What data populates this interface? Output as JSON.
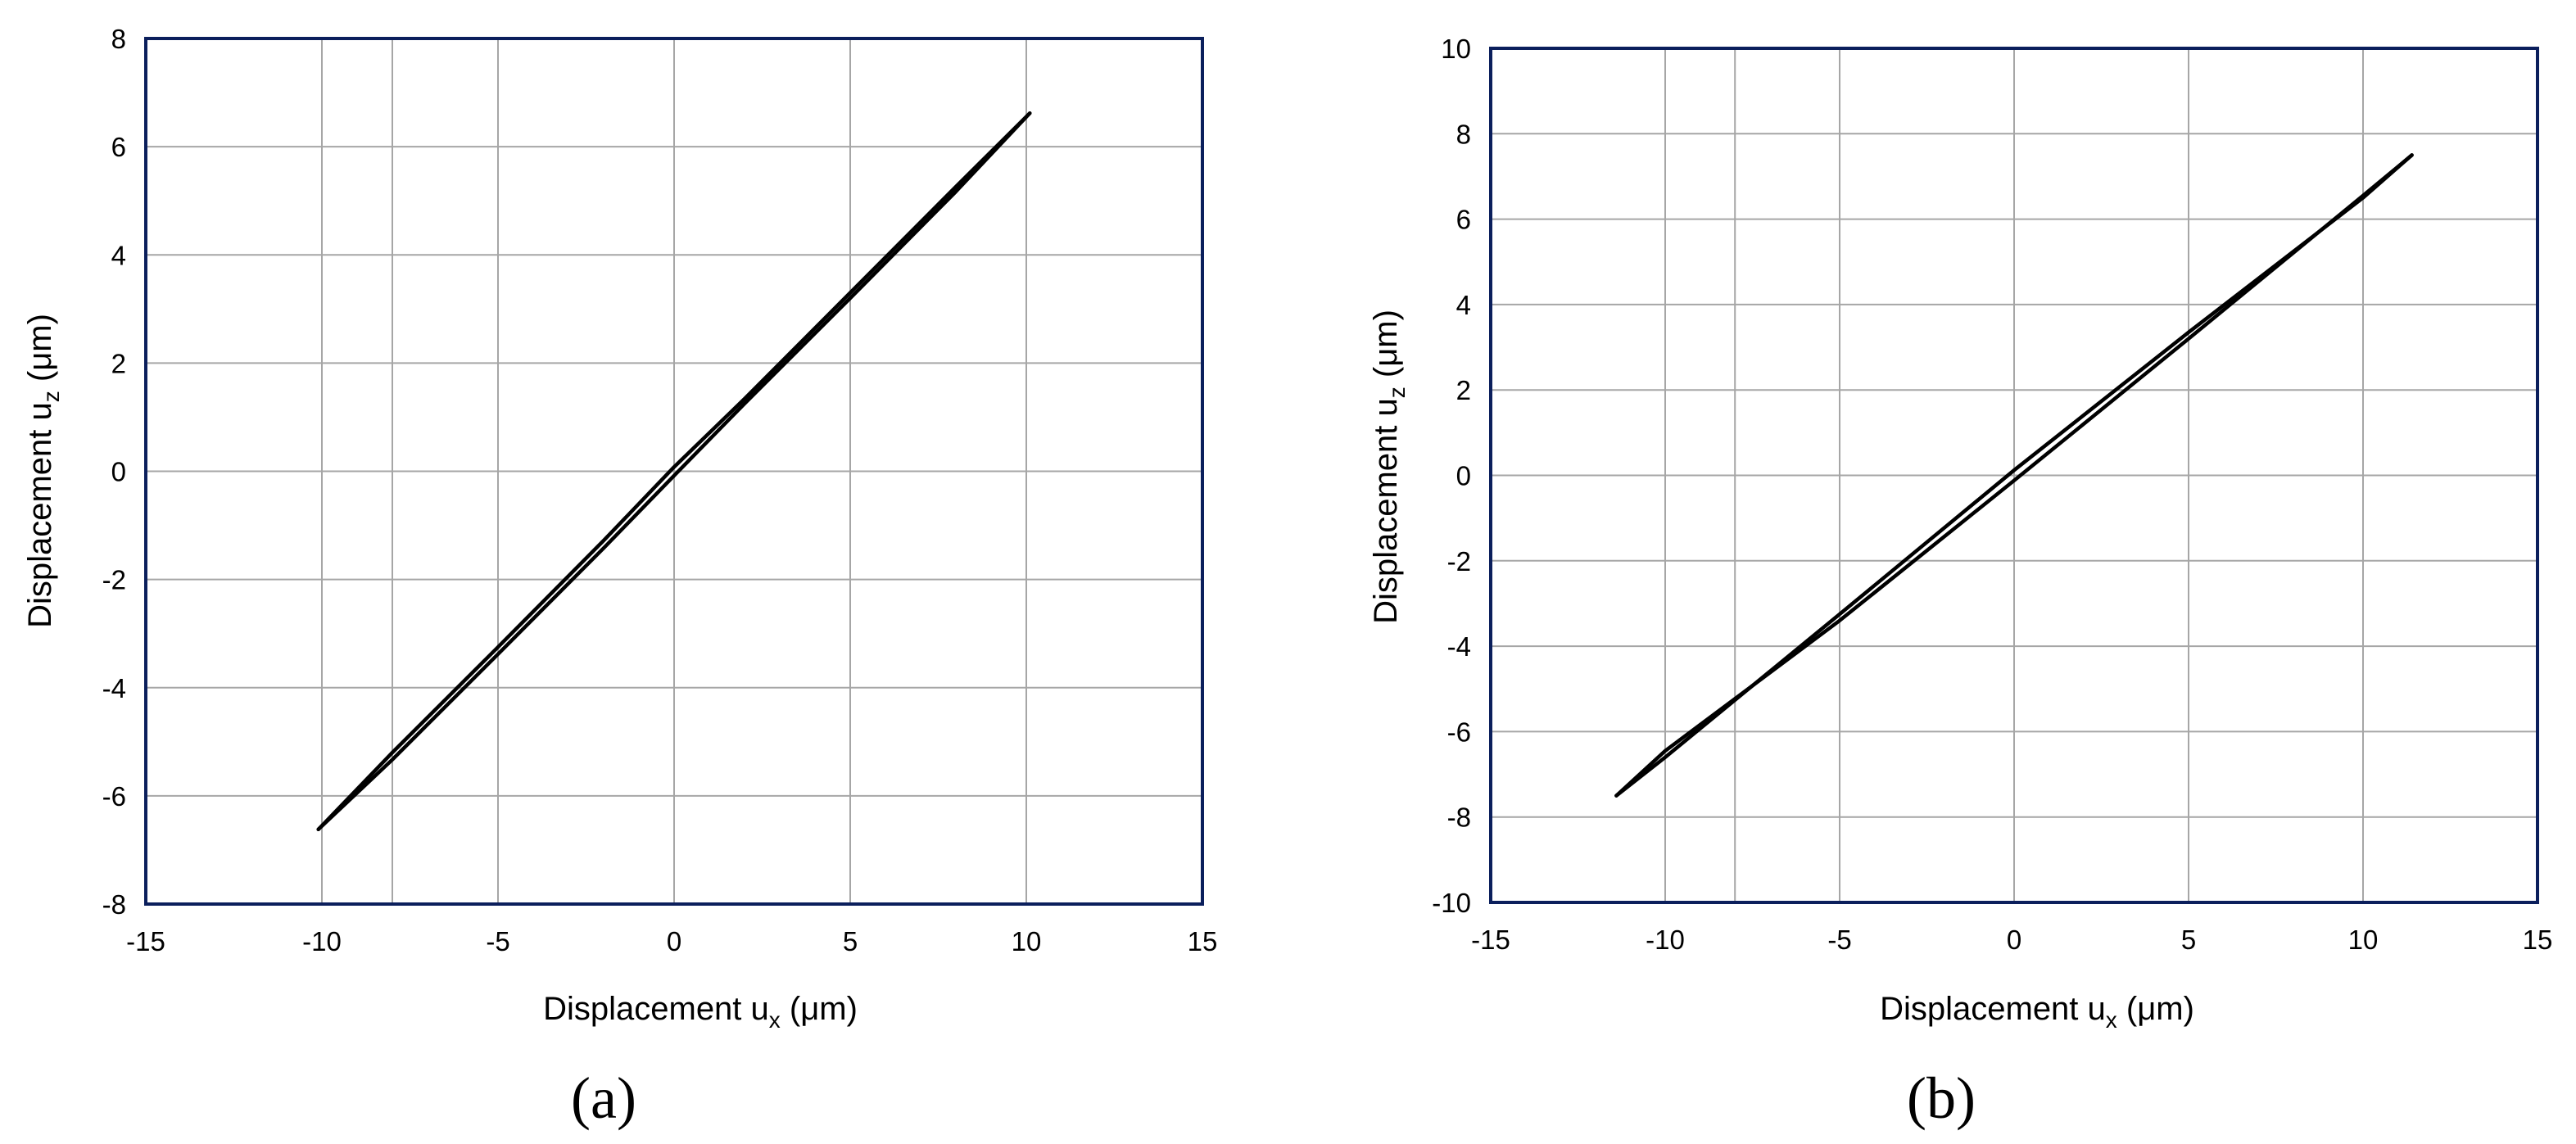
{
  "colors": {
    "frame": "#0b1f5c",
    "grid": "#a6a6a6",
    "line": "#000000",
    "background": "#ffffff"
  },
  "chart_data": [
    {
      "type": "line",
      "panel_label": "(a)",
      "xlabel": "Displacement ux (μm)",
      "ylabel": "Displacement uz (μm)",
      "xlim": [
        -15,
        15
      ],
      "ylim": [
        -8,
        8
      ],
      "x_ticks": [
        -15,
        -10,
        -5,
        0,
        5,
        10,
        15
      ],
      "y_ticks": [
        -8,
        -6,
        -4,
        -2,
        0,
        2,
        4,
        6,
        8
      ],
      "extra_vertical_gridline_x": -8,
      "grid": true,
      "series": [
        {
          "x": [
            -10.1,
            -8,
            -5,
            -2,
            0,
            2,
            5,
            8,
            10.1
          ],
          "y": [
            -6.62,
            -5.33,
            -3.38,
            -1.42,
            -0.08,
            1.25,
            3.2,
            5.17,
            6.62
          ]
        },
        {
          "x": [
            10.1,
            8,
            5,
            2,
            0,
            -2,
            -5,
            -8,
            -10.1
          ],
          "y": [
            6.62,
            5.26,
            3.3,
            1.34,
            0.08,
            -1.28,
            -3.25,
            -5.2,
            -6.62
          ]
        }
      ]
    },
    {
      "type": "line",
      "panel_label": "(b)",
      "xlabel": "Displacement ux (μm)",
      "ylabel": "Displacement uz (μm)",
      "xlim": [
        -15,
        15
      ],
      "ylim": [
        -10,
        10
      ],
      "x_ticks": [
        -15,
        -10,
        -5,
        0,
        5,
        10,
        15
      ],
      "y_ticks": [
        -10,
        -8,
        -6,
        -4,
        -2,
        0,
        2,
        4,
        6,
        8,
        10
      ],
      "extra_vertical_gridline_x": -8,
      "grid": true,
      "series": [
        {
          "x": [
            -11.4,
            -10,
            -5,
            0,
            5,
            10,
            11.4
          ],
          "y": [
            -7.5,
            -6.45,
            -3.4,
            -0.12,
            3.2,
            6.55,
            7.5
          ]
        },
        {
          "x": [
            11.4,
            10,
            5,
            0,
            -5,
            -10,
            -11.4
          ],
          "y": [
            7.5,
            6.5,
            3.35,
            0.12,
            -3.25,
            -6.6,
            -7.5
          ]
        }
      ]
    }
  ],
  "text": {
    "a": {
      "xlabel_main": "Displacement u",
      "xlabel_sub": "x",
      "xlabel_unit": " (μm)",
      "ylabel_main": "Displacement u",
      "ylabel_sub": "z",
      "ylabel_unit": " (μm)"
    },
    "b": {
      "xlabel_main": "Displacement u",
      "xlabel_sub": "x",
      "xlabel_unit": " (μm)",
      "ylabel_main": "Displacement u",
      "ylabel_sub": "z",
      "ylabel_unit": " (μm)"
    }
  }
}
